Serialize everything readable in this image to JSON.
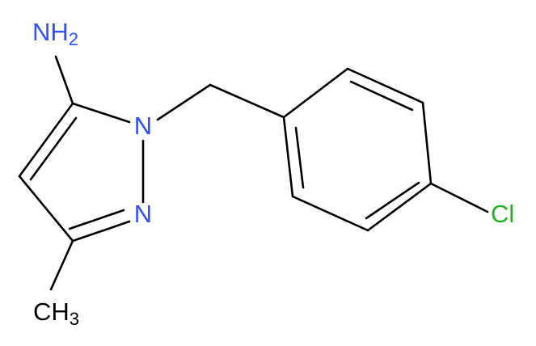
{
  "atoms": [
    {
      "label": "N",
      "suffix": "H",
      "sub": "2"
    },
    {
      "label": "N"
    },
    {
      "label": "N"
    },
    {
      "label": "Cl"
    },
    {
      "label": "C",
      "suffix": "H",
      "sub": "3"
    }
  ]
}
